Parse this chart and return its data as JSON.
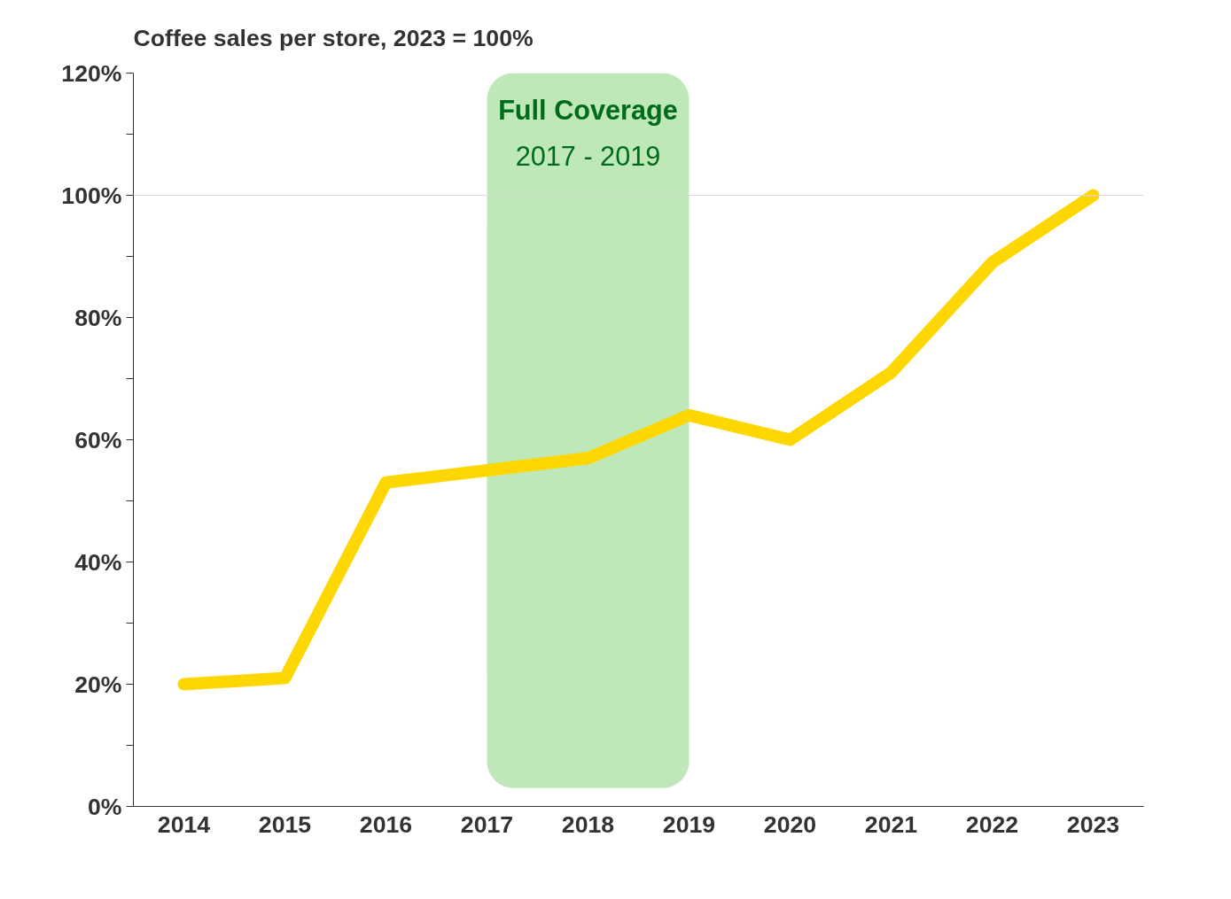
{
  "chart_data": {
    "type": "line",
    "title": "Coffee sales per store, 2023 = 100%",
    "categories": [
      "2014",
      "2015",
      "2016",
      "2017",
      "2018",
      "2019",
      "2020",
      "2021",
      "2022",
      "2023"
    ],
    "series": [
      {
        "color": "#ffd700",
        "values": [
          20,
          21,
          53,
          55,
          57,
          64,
          60,
          71,
          89,
          100
        ]
      }
    ],
    "ylim": [
      0,
      120
    ],
    "yticks": [
      {
        "value": 0,
        "label": "0%"
      },
      {
        "value": 10,
        "label": null
      },
      {
        "value": 20,
        "label": "20%"
      },
      {
        "value": 30,
        "label": null
      },
      {
        "value": 40,
        "label": "40%"
      },
      {
        "value": 50,
        "label": null
      },
      {
        "value": 60,
        "label": "60%"
      },
      {
        "value": 70,
        "label": null
      },
      {
        "value": 80,
        "label": "80%"
      },
      {
        "value": 90,
        "label": null
      },
      {
        "value": 100,
        "label": "100%"
      },
      {
        "value": 110,
        "label": null
      },
      {
        "value": 120,
        "label": "120%"
      }
    ],
    "ref_lines": [
      {
        "axis": "y",
        "value": 100,
        "color": "#d9d9d9"
      }
    ],
    "bands": [
      {
        "axis": "x",
        "from": "2017",
        "to": "2019",
        "label": "Full Coverage\n2017 - 2019",
        "color": "#a8e0a0"
      }
    ],
    "grid": false,
    "marker": "none",
    "line_style": "solid"
  }
}
